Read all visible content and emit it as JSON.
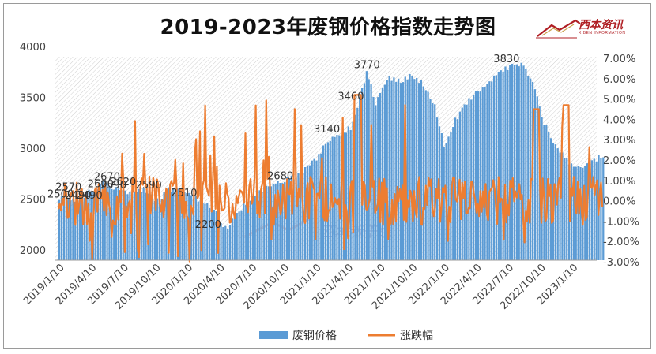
{
  "title": "2019-2023年废钢价格指数走势图",
  "logo": {
    "name": "西本资讯",
    "subtitle": "XIBEN INFORMATION"
  },
  "watermark": "西本新干线",
  "chart_data": {
    "type": "bar+line",
    "categories": [
      "2019/1/10",
      "2019/4/10",
      "2019/7/10",
      "2019/10/10",
      "2020/1/10",
      "2020/4/10",
      "2020/7/10",
      "2020/10/10",
      "2021/1/10",
      "2021/4/10",
      "2021/7/10",
      "2021/10/10",
      "2022/1/10",
      "2022/4/10",
      "2022/7/10",
      "2022/10/10",
      "2023/1/10"
    ],
    "y_left": {
      "min": 2000,
      "max": 4000,
      "ticks": [
        2000,
        2500,
        3000,
        3500,
        4000
      ]
    },
    "y_right": {
      "min": -3.0,
      "max": 7.0,
      "ticks": [
        "-3.00%",
        "-2.00%",
        "-1.00%",
        "0.00%",
        "1.00%",
        "2.00%",
        "3.00%",
        "4.00%",
        "5.00%",
        "6.00%",
        "7.00%"
      ]
    },
    "series": [
      {
        "name": "废钢价格",
        "type": "bar",
        "color": "#5b9bd5",
        "keypoints": [
          [
            0.0,
            2500
          ],
          [
            0.1,
            2570
          ],
          [
            0.3,
            2490
          ],
          [
            0.5,
            2470
          ],
          [
            0.9,
            2560
          ],
          [
            1.2,
            2600
          ],
          [
            1.4,
            2670
          ],
          [
            1.6,
            2590
          ],
          [
            1.8,
            2620
          ],
          [
            2.2,
            2550
          ],
          [
            2.6,
            2600
          ],
          [
            3.0,
            2470
          ],
          [
            3.4,
            2590
          ],
          [
            3.8,
            2590
          ],
          [
            4.1,
            2530
          ],
          [
            4.5,
            2470
          ],
          [
            4.8,
            2410
          ],
          [
            5.2,
            2200
          ],
          [
            5.5,
            2350
          ],
          [
            5.9,
            2480
          ],
          [
            6.3,
            2580
          ],
          [
            6.9,
            2680
          ],
          [
            7.4,
            2720
          ],
          [
            7.9,
            2860
          ],
          [
            8.3,
            3030
          ],
          [
            8.7,
            3140
          ],
          [
            9.1,
            3200
          ],
          [
            9.35,
            3460
          ],
          [
            9.6,
            3770
          ],
          [
            9.85,
            3430
          ],
          [
            10.2,
            3690
          ],
          [
            10.6,
            3660
          ],
          [
            11.0,
            3710
          ],
          [
            11.3,
            3640
          ],
          [
            11.7,
            3430
          ],
          [
            12.0,
            3000
          ],
          [
            12.3,
            3250
          ],
          [
            12.7,
            3460
          ],
          [
            13.2,
            3600
          ],
          [
            13.6,
            3700
          ],
          [
            14.1,
            3830
          ],
          [
            14.5,
            3820
          ],
          [
            14.8,
            3600
          ],
          [
            15.1,
            3250
          ],
          [
            15.5,
            3000
          ],
          [
            15.9,
            2850
          ],
          [
            16.2,
            2800
          ],
          [
            16.6,
            2880
          ],
          [
            16.9,
            2920
          ],
          [
            17.0,
            2930
          ]
        ]
      },
      {
        "name": "涨跌幅",
        "type": "line",
        "color": "#ed7d31",
        "range": [
          -3.0,
          5.3
        ]
      }
    ],
    "data_labels": [
      {
        "text": "2500",
        "x": 0.0,
        "y": 2500
      },
      {
        "text": "2570",
        "x": 0.25,
        "y": 2570
      },
      {
        "text": "2490",
        "x": 0.55,
        "y": 2490
      },
      {
        "text": "2490",
        "x": 0.9,
        "y": 2490
      },
      {
        "text": "2600",
        "x": 1.25,
        "y": 2600
      },
      {
        "text": "2670",
        "x": 1.45,
        "y": 2670
      },
      {
        "text": "2590",
        "x": 1.65,
        "y": 2590
      },
      {
        "text": "2620",
        "x": 1.95,
        "y": 2620
      },
      {
        "text": "2590",
        "x": 2.75,
        "y": 2590
      },
      {
        "text": "2510",
        "x": 3.85,
        "y": 2510
      },
      {
        "text": "2200",
        "x": 4.6,
        "y": 2200
      },
      {
        "text": "2680",
        "x": 6.85,
        "y": 2680
      },
      {
        "text": "3140",
        "x": 8.3,
        "y": 3140
      },
      {
        "text": "3460",
        "x": 9.05,
        "y": 3460
      },
      {
        "text": "3770",
        "x": 9.55,
        "y": 3770
      },
      {
        "text": "3830",
        "x": 13.9,
        "y": 3830
      }
    ],
    "legend": {
      "position": "bottom",
      "entries": [
        "废钢价格",
        "涨跌幅"
      ]
    }
  }
}
